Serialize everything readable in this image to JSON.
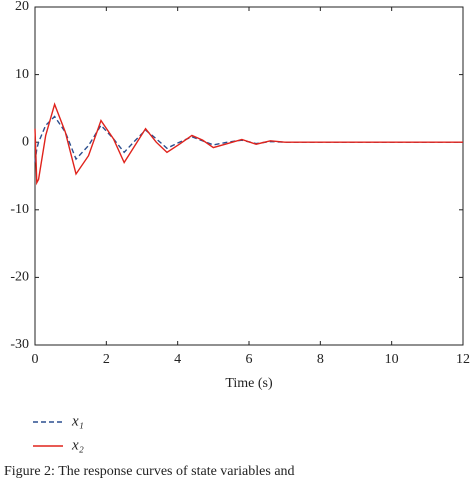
{
  "chart_data": {
    "type": "line",
    "xlabel": "Time (s)",
    "caption": "Figure 2: The response curves of state variables and",
    "x": [
      0,
      0.05,
      0.1,
      0.3,
      0.55,
      0.85,
      1.15,
      1.5,
      1.85,
      2.2,
      2.5,
      2.8,
      3.1,
      3.4,
      3.7,
      4.05,
      4.4,
      4.7,
      5.0,
      5.4,
      5.8,
      6.2,
      6.6,
      7.0,
      7.4,
      12
    ],
    "series": [
      {
        "name": "x₁",
        "color": "#2b4f8f",
        "dashed": true,
        "values": [
          -3,
          -1,
          0,
          2.5,
          3.8,
          1.5,
          -2.5,
          -0.5,
          2.5,
          0.5,
          -1.5,
          0.2,
          1.8,
          0.5,
          -0.9,
          0,
          0.8,
          0.2,
          -0.4,
          0,
          0.3,
          -0.2,
          0.1,
          0,
          0,
          0
        ]
      },
      {
        "name": "x₂",
        "color": "#e0231c",
        "dashed": false,
        "values": [
          2,
          -6,
          -5.5,
          1,
          5.6,
          1.5,
          -4.7,
          -2,
          3.2,
          0.5,
          -3,
          -0.5,
          2,
          0,
          -1.5,
          -0.3,
          1,
          0.3,
          -0.8,
          -0.2,
          0.4,
          -0.3,
          0.2,
          0,
          0,
          0
        ]
      }
    ],
    "xlim": [
      0,
      12
    ],
    "xticks": [
      0,
      2,
      4,
      6,
      8,
      10,
      12
    ],
    "ylim": [
      -30,
      20
    ],
    "yticks": [
      20,
      10,
      0,
      -10,
      -20,
      -30
    ],
    "grid": false
  }
}
